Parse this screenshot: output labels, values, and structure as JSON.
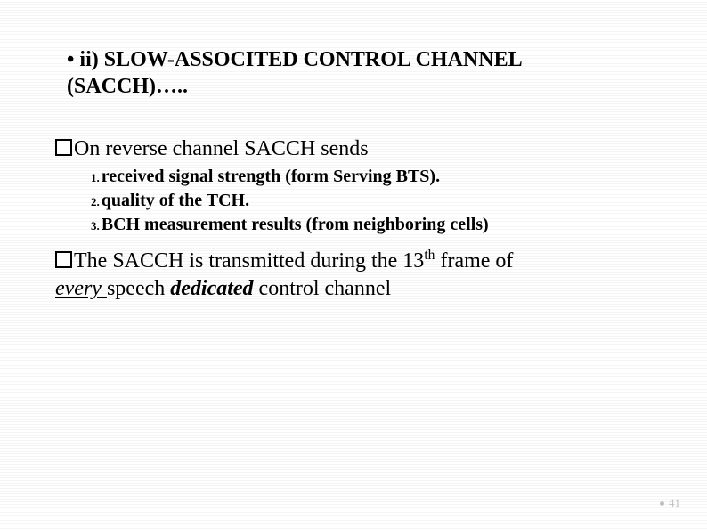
{
  "title_line1": "• ii)  SLOW-ASSOCITED CONTROL CHANNEL",
  "title_line2": "(SACCH)…..",
  "lead_in": "On reverse channel SACCH sends",
  "items": {
    "n1": "1.",
    "t1": "received signal strength (form Serving BTS).",
    "n2": "2.",
    "t2": "quality of the TCH.",
    "n3": "3.",
    "t3": "BCH measurement results (from neighboring cells)"
  },
  "para2": {
    "pre": "The SACCH is transmitted during the 13",
    "sup": "th",
    "mid": " frame of ",
    "every": "every ",
    "speech": "speech ",
    "bold": "dedicated",
    "tail": " control channel"
  },
  "page": "41",
  "colors": {
    "text": "#000000",
    "pagenum": "#bfbfbf",
    "bg_stripe_a": "#ffffff",
    "bg_stripe_b": "#f5f5f5"
  },
  "fontsizes": {
    "title": 24,
    "body": 24,
    "sublist": 20,
    "subnum": 13,
    "pagenum": 13
  }
}
